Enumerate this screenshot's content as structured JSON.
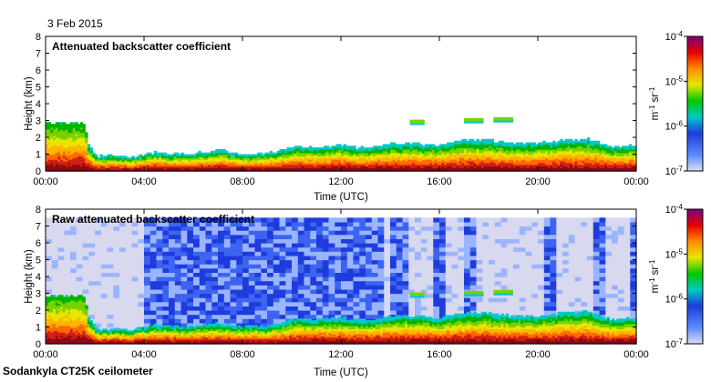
{
  "date": "3 Feb 2015",
  "footer": "Sodankyla CT25K ceilometer",
  "chart_data": [
    {
      "type": "heatmap",
      "title": "Attenuated backscatter coefficient",
      "xlabel": "Time (UTC)",
      "ylabel": "Height (km)",
      "x_ticks": [
        "00:00",
        "04:00",
        "08:00",
        "12:00",
        "16:00",
        "20:00",
        "00:00"
      ],
      "xlim_hours": [
        0,
        24
      ],
      "ylim": [
        0,
        8
      ],
      "y_ticks": [
        0,
        1,
        2,
        3,
        4,
        5,
        6,
        7,
        8
      ],
      "colorbar": {
        "scale": "log",
        "min": "10^-7",
        "max": "10^-4",
        "ticks": [
          "10^-4",
          "10^-5",
          "10^-6",
          "10^-7"
        ],
        "unit": "m^-1 sr^-1"
      },
      "noise_background": false,
      "cloud_top_profile_km": [
        [
          0,
          2.8
        ],
        [
          1.6,
          2.8
        ],
        [
          1.7,
          1.6
        ],
        [
          2.1,
          0.85
        ],
        [
          3.5,
          0.8
        ],
        [
          4.0,
          0.95
        ],
        [
          4.5,
          1.1
        ],
        [
          5.0,
          1.0
        ],
        [
          6.0,
          1.0
        ],
        [
          7.0,
          1.2
        ],
        [
          8.0,
          1.0
        ],
        [
          9.0,
          1.0
        ],
        [
          10.0,
          1.4
        ],
        [
          11.0,
          1.4
        ],
        [
          12.0,
          1.5
        ],
        [
          13.0,
          1.3
        ],
        [
          14.0,
          1.6
        ],
        [
          15.0,
          1.6
        ],
        [
          16.0,
          1.5
        ],
        [
          17.0,
          1.8
        ],
        [
          18.0,
          1.8
        ],
        [
          19.0,
          1.6
        ],
        [
          20.0,
          1.6
        ],
        [
          21.0,
          1.8
        ],
        [
          22.0,
          1.9
        ],
        [
          23.0,
          1.4
        ],
        [
          24.0,
          1.5
        ]
      ],
      "elevated_cloud_patches": [
        {
          "start_h": 14.8,
          "end_h": 15.4,
          "height_km": 2.95
        },
        {
          "start_h": 17.0,
          "end_h": 17.8,
          "height_km": 3.05
        },
        {
          "start_h": 18.2,
          "end_h": 19.0,
          "height_km": 3.1
        }
      ]
    },
    {
      "type": "heatmap",
      "title": "Raw attenuated backscatter coefficient",
      "xlabel": "Time (UTC)",
      "ylabel": "Height (km)",
      "x_ticks": [
        "00:00",
        "04:00",
        "08:00",
        "12:00",
        "16:00",
        "20:00",
        "00:00"
      ],
      "xlim_hours": [
        0,
        24
      ],
      "ylim": [
        0,
        8
      ],
      "y_ticks": [
        0,
        1,
        2,
        3,
        4,
        5,
        6,
        7,
        8
      ],
      "colorbar": {
        "scale": "log",
        "min": "10^-7",
        "max": "10^-4",
        "ticks": [
          "10^-4",
          "10^-5",
          "10^-6",
          "10^-7"
        ],
        "unit": "m^-1 sr^-1"
      },
      "noise_background": true,
      "noise_top_km": 7.5,
      "cloud_top_profile_km": [
        [
          0,
          2.8
        ],
        [
          1.6,
          2.8
        ],
        [
          1.7,
          1.6
        ],
        [
          2.1,
          0.85
        ],
        [
          3.5,
          0.8
        ],
        [
          4.0,
          0.95
        ],
        [
          4.5,
          1.1
        ],
        [
          5.0,
          1.0
        ],
        [
          6.0,
          1.0
        ],
        [
          7.0,
          1.2
        ],
        [
          8.0,
          1.0
        ],
        [
          9.0,
          1.0
        ],
        [
          10.0,
          1.4
        ],
        [
          11.0,
          1.4
        ],
        [
          12.0,
          1.5
        ],
        [
          13.0,
          1.3
        ],
        [
          14.0,
          1.6
        ],
        [
          15.0,
          1.6
        ],
        [
          16.0,
          1.5
        ],
        [
          17.0,
          1.8
        ],
        [
          18.0,
          1.8
        ],
        [
          19.0,
          1.6
        ],
        [
          20.0,
          1.6
        ],
        [
          21.0,
          1.8
        ],
        [
          22.0,
          1.9
        ],
        [
          23.0,
          1.4
        ],
        [
          24.0,
          1.5
        ]
      ],
      "elevated_cloud_patches": [
        {
          "start_h": 14.8,
          "end_h": 15.4,
          "height_km": 2.95
        },
        {
          "start_h": 17.0,
          "end_h": 17.8,
          "height_km": 3.05
        },
        {
          "start_h": 18.2,
          "end_h": 19.0,
          "height_km": 3.1
        }
      ]
    }
  ]
}
